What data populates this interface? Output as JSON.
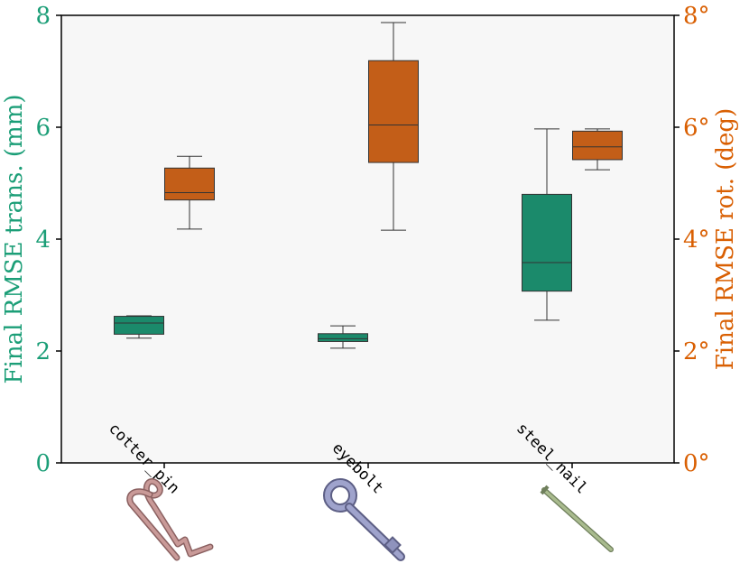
{
  "chart_data": {
    "type": "box",
    "categories": [
      "cotter_pin",
      "eyebolt",
      "steel_nail"
    ],
    "y_left": {
      "label": "Final RMSE trans. (mm)",
      "ylim": [
        0,
        8
      ],
      "ticks": [
        0,
        2,
        4,
        6,
        8
      ],
      "tick_labels": [
        "0",
        "2",
        "4",
        "6",
        "8"
      ],
      "color": "#1b9e77"
    },
    "y_right": {
      "label": "Final RMSE rot. (deg)",
      "ylim": [
        0,
        8
      ],
      "ticks": [
        0,
        2,
        4,
        6,
        8
      ],
      "tick_labels": [
        "0°",
        "2°",
        "4°",
        "6°",
        "8°"
      ],
      "color": "#d95f02"
    },
    "series": [
      {
        "axis": "left",
        "color": "#1b8a6b",
        "boxes": [
          {
            "whisker_low": 2.23,
            "q1": 2.3,
            "median": 2.5,
            "q3": 2.62,
            "whisker_high": 2.63
          },
          {
            "whisker_low": 2.05,
            "q1": 2.17,
            "median": 2.22,
            "q3": 2.31,
            "whisker_high": 2.45
          },
          {
            "whisker_low": 2.55,
            "q1": 3.07,
            "median": 3.58,
            "q3": 4.8,
            "whisker_high": 5.97
          }
        ]
      },
      {
        "axis": "right",
        "color": "#c35e18",
        "boxes": [
          {
            "whisker_low": 4.18,
            "q1": 4.7,
            "median": 4.83,
            "q3": 5.27,
            "whisker_high": 5.48
          },
          {
            "whisker_low": 4.16,
            "q1": 5.37,
            "median": 6.04,
            "q3": 7.19,
            "whisker_high": 7.87
          },
          {
            "whisker_low": 5.24,
            "q1": 5.42,
            "median": 5.65,
            "q3": 5.93,
            "whisker_high": 5.97
          }
        ]
      }
    ],
    "grid": false,
    "plot_background": "#f7f7f7"
  },
  "icons": [
    "cotter-pin-icon",
    "eyebolt-icon",
    "steel-nail-icon"
  ]
}
